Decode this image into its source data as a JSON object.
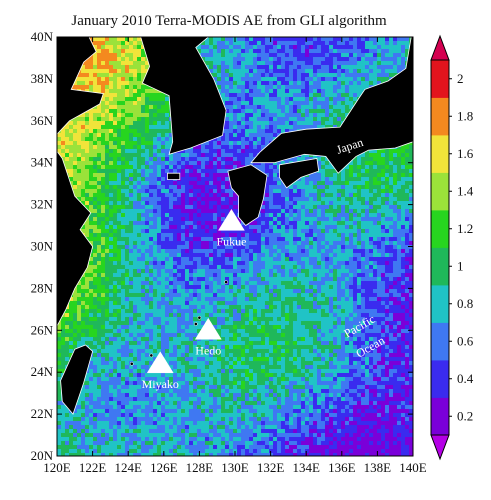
{
  "title": "January 2010 Terra-MODIS AE from GLI algorithm",
  "map": {
    "lon_range": [
      120,
      140
    ],
    "lat_range": [
      20,
      40
    ],
    "x_ticks": [
      "120E",
      "122E",
      "124E",
      "126E",
      "128E",
      "130E",
      "132E",
      "134E",
      "136E",
      "138E",
      "140E"
    ],
    "y_ticks": [
      "20N",
      "22N",
      "24N",
      "26N",
      "28N",
      "30N",
      "32N",
      "34N",
      "36N",
      "38N",
      "40N"
    ],
    "land_color": "#000000",
    "coastline_color": "#ffffff"
  },
  "sites": [
    {
      "name": "Fukue",
      "lon": 129.8,
      "lat": 31.2
    },
    {
      "name": "Hedo",
      "lon": 128.5,
      "lat": 26.0
    },
    {
      "name": "Miyako",
      "lon": 125.8,
      "lat": 24.4
    }
  ],
  "region_labels": {
    "japan": "Japan",
    "pacific": "Pacific",
    "ocean": "Ocean"
  },
  "colorbar": {
    "ticks": [
      "0.2",
      "0.4",
      "0.6",
      "0.8",
      "1",
      "1.2",
      "1.4",
      "1.6",
      "1.8",
      "2"
    ],
    "colors": [
      "#7a00d9",
      "#3a2bef",
      "#3f78f2",
      "#20c3c6",
      "#1fb85a",
      "#27d51f",
      "#9be23a",
      "#f1e43a",
      "#f4891f",
      "#e2141d"
    ],
    "under_color": "#b400e6",
    "over_color": "#d40050",
    "range": [
      0.1,
      2.1
    ]
  }
}
